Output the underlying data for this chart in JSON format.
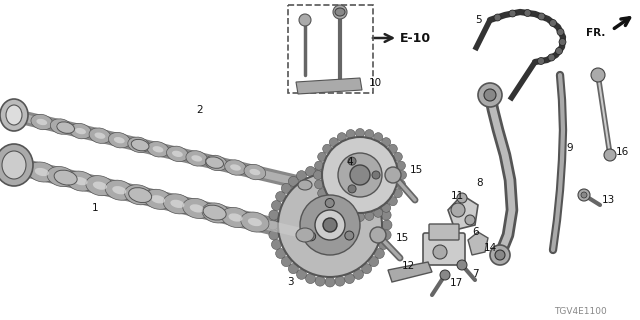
{
  "bg_color": "#ffffff",
  "diagram_id": "TGV4E1100",
  "fr_label": "FR.",
  "e10_label": "E-10",
  "fig_w": 6.4,
  "fig_h": 3.2,
  "dpi": 100
}
